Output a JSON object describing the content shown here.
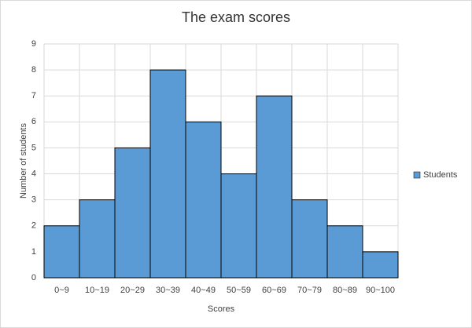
{
  "chart_data": {
    "type": "bar",
    "title": "The exam scores",
    "x_label": "Scores",
    "y_label": "Number of students",
    "categories": [
      "0~9",
      "10~19",
      "20~29",
      "30~39",
      "40~49",
      "50~59",
      "60~69",
      "70~79",
      "80~89",
      "90~100"
    ],
    "series": [
      {
        "name": "Students",
        "color": "#5b9bd5",
        "values": [
          2,
          3,
          5,
          8,
          6,
          4,
          7,
          3,
          2,
          1
        ]
      }
    ],
    "ylim": [
      0,
      9
    ],
    "yticks": [
      0,
      1,
      2,
      3,
      4,
      5,
      6,
      7,
      8,
      9
    ],
    "grid": true,
    "legend": "right"
  }
}
